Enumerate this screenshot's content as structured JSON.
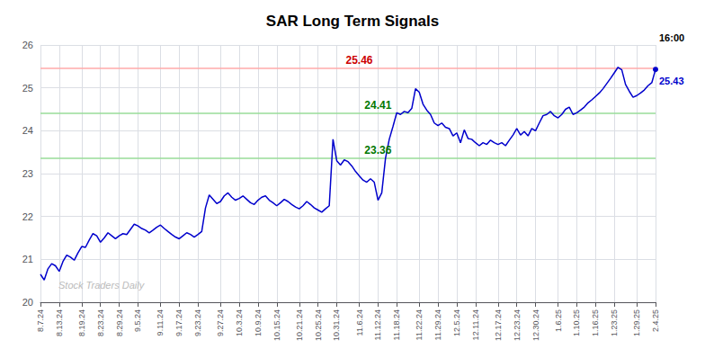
{
  "chart_data": {
    "type": "line",
    "title": "SAR Long Term Signals",
    "color": "#0000cc",
    "grid": true,
    "ylim": [
      20,
      26
    ],
    "yticks": [
      20,
      21,
      22,
      23,
      24,
      25,
      26
    ],
    "categories": [
      "8.7.24",
      null,
      null,
      null,
      null,
      "8.13.24",
      null,
      null,
      null,
      null,
      null,
      "8.19.24",
      null,
      null,
      null,
      null,
      "8.23.24",
      null,
      null,
      null,
      null,
      "8.29.24",
      null,
      null,
      null,
      null,
      "9.5.24",
      null,
      null,
      null,
      null,
      null,
      "9.11.24",
      null,
      null,
      null,
      null,
      "9.17.24",
      null,
      null,
      null,
      null,
      "9.23.24",
      null,
      null,
      null,
      null,
      null,
      "9.27.24",
      null,
      null,
      null,
      null,
      "10.3.24",
      null,
      null,
      null,
      null,
      "10.9.24",
      null,
      null,
      null,
      null,
      "10.15.24",
      null,
      null,
      null,
      null,
      null,
      "10.21.24",
      null,
      null,
      null,
      null,
      "10.25.24",
      null,
      null,
      null,
      null,
      "10.31.24",
      null,
      null,
      null,
      null,
      null,
      "11.6.24",
      null,
      null,
      null,
      null,
      "11.12.24",
      null,
      null,
      null,
      null,
      "11.18.24",
      null,
      null,
      null,
      null,
      null,
      "11.22.24",
      null,
      null,
      null,
      null,
      "11.29.24",
      null,
      null,
      null,
      null,
      "12.5.24",
      null,
      null,
      null,
      null,
      "12.11.24",
      null,
      null,
      null,
      null,
      null,
      "12.17.24",
      null,
      null,
      null,
      null,
      "12.23.24",
      null,
      null,
      null,
      null,
      "12.30.24",
      null,
      null,
      null,
      null,
      null,
      "1.6.25",
      null,
      null,
      null,
      null,
      "1.10.25",
      null,
      null,
      null,
      null,
      "1.16.25",
      null,
      null,
      null,
      null,
      "1.23.25",
      null,
      null,
      null,
      null,
      null,
      "1.29.25",
      null,
      null,
      null,
      null,
      "2.4.25"
    ],
    "values": [
      20.65,
      20.52,
      20.78,
      20.9,
      20.85,
      20.72,
      20.95,
      21.1,
      21.05,
      20.98,
      21.15,
      21.3,
      21.28,
      21.45,
      21.6,
      21.55,
      21.4,
      21.5,
      21.62,
      21.55,
      21.48,
      21.55,
      21.6,
      21.58,
      21.7,
      21.82,
      21.78,
      21.72,
      21.68,
      21.62,
      21.68,
      21.75,
      21.8,
      21.72,
      21.65,
      21.58,
      21.52,
      21.48,
      21.55,
      21.62,
      21.58,
      21.52,
      21.58,
      21.65,
      22.2,
      22.5,
      22.4,
      22.3,
      22.35,
      22.48,
      22.55,
      22.45,
      22.38,
      22.42,
      22.48,
      22.4,
      22.32,
      22.28,
      22.38,
      22.45,
      22.48,
      22.38,
      22.32,
      22.25,
      22.32,
      22.4,
      22.35,
      22.28,
      22.22,
      22.18,
      22.25,
      22.35,
      22.28,
      22.2,
      22.15,
      22.1,
      22.18,
      22.25,
      23.8,
      23.3,
      23.2,
      23.32,
      23.28,
      23.18,
      23.05,
      22.95,
      22.85,
      22.8,
      22.88,
      22.8,
      22.38,
      22.55,
      23.36,
      23.8,
      24.1,
      24.42,
      24.38,
      24.45,
      24.42,
      24.52,
      24.98,
      24.9,
      24.62,
      24.48,
      24.38,
      24.18,
      24.12,
      24.18,
      24.08,
      24.05,
      23.88,
      23.95,
      23.72,
      24.02,
      23.82,
      23.8,
      23.72,
      23.65,
      23.72,
      23.68,
      23.78,
      23.72,
      23.68,
      23.72,
      23.65,
      23.78,
      23.9,
      24.05,
      23.9,
      23.98,
      23.88,
      24.05,
      24.0,
      24.18,
      24.35,
      24.38,
      24.45,
      24.35,
      24.3,
      24.38,
      24.5,
      24.55,
      24.38,
      24.42,
      24.48,
      24.55,
      24.65,
      24.72,
      24.8,
      24.88,
      24.98,
      25.1,
      25.22,
      25.35,
      25.48,
      25.42,
      25.08,
      24.92,
      24.78,
      24.82,
      24.88,
      24.95,
      25.05,
      25.12,
      25.43
    ],
    "reference_lines": [
      {
        "value": 25.46,
        "color": "#ffaaaa",
        "label": "25.46",
        "label_color": "#cc0000",
        "label_at": "11.6.24"
      },
      {
        "value": 24.41,
        "color": "#99dd99",
        "label": "24.41",
        "label_color": "#007700",
        "label_at": "11.12.24"
      },
      {
        "value": 23.36,
        "color": "#99dd99",
        "label": "23.36",
        "label_color": "#007700",
        "label_at": "11.12.24"
      }
    ],
    "last_label": {
      "time": "16:00",
      "value": "25.43",
      "color": "#0000cc"
    },
    "watermark": {
      "text": "Stock Traders Daily",
      "color": "#bbbbbb"
    }
  }
}
